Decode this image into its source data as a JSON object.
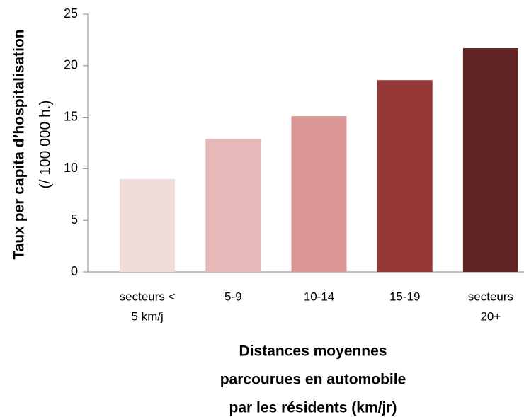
{
  "chart_data": {
    "type": "bar",
    "y_label": [
      "Taux per capita d’hospitalisation",
      "(/ 100 000 h.)"
    ],
    "x_label": [
      "Distances moyennes",
      "parcourues en automobile",
      "par les résidents (km/jr)"
    ],
    "categories": [
      [
        "secteurs <",
        "5 km/j"
      ],
      [
        "5-9"
      ],
      [
        "10-14"
      ],
      [
        "15-19"
      ],
      [
        "secteurs",
        "20+"
      ]
    ],
    "values": [
      9.0,
      12.9,
      15.1,
      18.6,
      21.7
    ],
    "colors": [
      "#f2dcdb",
      "#e6b9b8",
      "#d99694",
      "#953735",
      "#632523"
    ],
    "ylim": [
      0,
      25
    ],
    "yticks": [
      0,
      5,
      10,
      15,
      20,
      25
    ],
    "grid": false
  }
}
